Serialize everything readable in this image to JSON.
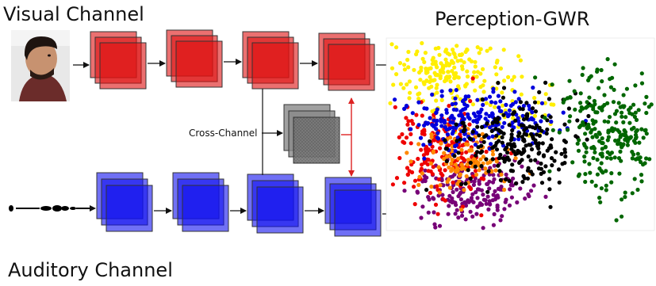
{
  "visual_channel": {
    "label": "Visual Channel",
    "color": "#dd1111"
  },
  "auditory_channel": {
    "label": "Auditory Channel",
    "color": "#1111ee"
  },
  "cross_channel": {
    "label": "Cross-Channel",
    "color": "#777777"
  },
  "gwr": {
    "title": "Perception-GWR"
  },
  "colors": {
    "arrow": "#111111",
    "feedback_arrow": "#dd2222",
    "clusters": [
      "#ffee00",
      "#0000dd",
      "#000000",
      "#ff8800",
      "#ee0000",
      "#006600",
      "#770077"
    ]
  },
  "icons": {
    "face": "face-photo-icon",
    "waveform": "audio-waveform-icon"
  }
}
